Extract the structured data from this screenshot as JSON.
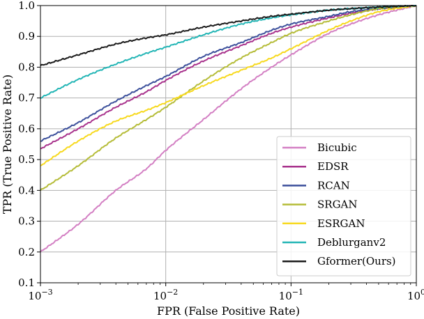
{
  "chart_data": {
    "type": "line",
    "title": "",
    "xlabel": "FPR (False Positive Rate)",
    "ylabel": "TPR (True Positive Rate)",
    "xscale": "log",
    "xlim": [
      0.001,
      1
    ],
    "ylim": [
      0.1,
      1.0
    ],
    "grid": true,
    "legend_position": "bottom-right",
    "x_ticks": [
      {
        "value": 0.001,
        "base": "10",
        "exp": "−3"
      },
      {
        "value": 0.01,
        "base": "10",
        "exp": "−2"
      },
      {
        "value": 0.1,
        "base": "10",
        "exp": "−1"
      },
      {
        "value": 1,
        "base": "10",
        "exp": "0"
      }
    ],
    "y_ticks": [
      "0.1",
      "0.2",
      "0.3",
      "0.4",
      "0.5",
      "0.6",
      "0.7",
      "0.8",
      "0.9",
      "1.0"
    ],
    "series": [
      {
        "name": "Bicubic",
        "color": "#d37fc3",
        "points": [
          [
            0.001,
            0.2
          ],
          [
            0.002,
            0.29
          ],
          [
            0.004,
            0.4
          ],
          [
            0.007,
            0.47
          ],
          [
            0.01,
            0.53
          ],
          [
            0.02,
            0.63
          ],
          [
            0.04,
            0.73
          ],
          [
            0.07,
            0.8
          ],
          [
            0.1,
            0.84
          ],
          [
            0.2,
            0.91
          ],
          [
            0.3,
            0.94
          ],
          [
            0.5,
            0.97
          ],
          [
            1,
            1.0
          ]
        ]
      },
      {
        "name": "EDSR",
        "color": "#a8328c",
        "points": [
          [
            0.001,
            0.535
          ],
          [
            0.002,
            0.6
          ],
          [
            0.004,
            0.67
          ],
          [
            0.007,
            0.72
          ],
          [
            0.01,
            0.757
          ],
          [
            0.02,
            0.82
          ],
          [
            0.04,
            0.87
          ],
          [
            0.07,
            0.91
          ],
          [
            0.1,
            0.93
          ],
          [
            0.2,
            0.96
          ],
          [
            0.3,
            0.975
          ],
          [
            0.5,
            0.99
          ],
          [
            1,
            1.0
          ]
        ]
      },
      {
        "name": "RCAN",
        "color": "#3b4f9b",
        "points": [
          [
            0.001,
            0.56
          ],
          [
            0.002,
            0.62
          ],
          [
            0.004,
            0.69
          ],
          [
            0.007,
            0.74
          ],
          [
            0.01,
            0.77
          ],
          [
            0.02,
            0.835
          ],
          [
            0.04,
            0.88
          ],
          [
            0.07,
            0.92
          ],
          [
            0.1,
            0.94
          ],
          [
            0.2,
            0.965
          ],
          [
            0.3,
            0.98
          ],
          [
            0.5,
            0.99
          ],
          [
            1,
            1.0
          ]
        ]
      },
      {
        "name": "SRGAN",
        "color": "#b5bc38",
        "points": [
          [
            0.001,
            0.4
          ],
          [
            0.002,
            0.48
          ],
          [
            0.004,
            0.57
          ],
          [
            0.007,
            0.63
          ],
          [
            0.01,
            0.67
          ],
          [
            0.02,
            0.755
          ],
          [
            0.04,
            0.83
          ],
          [
            0.07,
            0.88
          ],
          [
            0.1,
            0.91
          ],
          [
            0.2,
            0.95
          ],
          [
            0.3,
            0.97
          ],
          [
            0.5,
            0.99
          ],
          [
            1,
            1.0
          ]
        ]
      },
      {
        "name": "ESRGAN",
        "color": "#f7d91e",
        "points": [
          [
            0.001,
            0.48
          ],
          [
            0.002,
            0.56
          ],
          [
            0.004,
            0.625
          ],
          [
            0.007,
            0.66
          ],
          [
            0.01,
            0.685
          ],
          [
            0.02,
            0.74
          ],
          [
            0.04,
            0.79
          ],
          [
            0.07,
            0.83
          ],
          [
            0.1,
            0.86
          ],
          [
            0.2,
            0.92
          ],
          [
            0.3,
            0.95
          ],
          [
            0.5,
            0.98
          ],
          [
            1,
            1.0
          ]
        ]
      },
      {
        "name": "Deblurganv2",
        "color": "#22b5b5",
        "points": [
          [
            0.001,
            0.7
          ],
          [
            0.002,
            0.76
          ],
          [
            0.004,
            0.81
          ],
          [
            0.007,
            0.845
          ],
          [
            0.01,
            0.865
          ],
          [
            0.02,
            0.905
          ],
          [
            0.04,
            0.94
          ],
          [
            0.07,
            0.96
          ],
          [
            0.1,
            0.97
          ],
          [
            0.2,
            0.985
          ],
          [
            0.3,
            0.99
          ],
          [
            0.5,
            0.995
          ],
          [
            1,
            1.0
          ]
        ]
      },
      {
        "name": "Gformer(Ours)",
        "color": "#1a1a1a",
        "points": [
          [
            0.001,
            0.805
          ],
          [
            0.002,
            0.84
          ],
          [
            0.004,
            0.875
          ],
          [
            0.007,
            0.895
          ],
          [
            0.01,
            0.905
          ],
          [
            0.02,
            0.93
          ],
          [
            0.04,
            0.95
          ],
          [
            0.07,
            0.965
          ],
          [
            0.1,
            0.972
          ],
          [
            0.2,
            0.985
          ],
          [
            0.3,
            0.99
          ],
          [
            0.5,
            0.995
          ],
          [
            1,
            1.0
          ]
        ]
      }
    ]
  }
}
